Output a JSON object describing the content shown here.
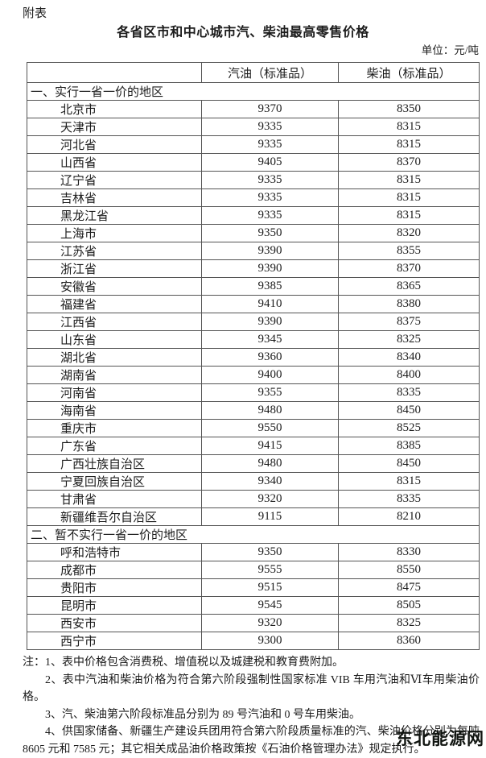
{
  "page": {
    "top_label": "附表",
    "title": "各省区市和中心城市汽、柴油最高零售价格",
    "unit_label": "单位：元/吨"
  },
  "table": {
    "columns": [
      "",
      "汽油（标准品）",
      "柴油（标准品）"
    ],
    "sections": [
      {
        "heading": "一、实行一省一价的地区",
        "rows": [
          {
            "region": "北京市",
            "gasoline": "9370",
            "diesel": "8350"
          },
          {
            "region": "天津市",
            "gasoline": "9335",
            "diesel": "8315"
          },
          {
            "region": "河北省",
            "gasoline": "9335",
            "diesel": "8315"
          },
          {
            "region": "山西省",
            "gasoline": "9405",
            "diesel": "8370"
          },
          {
            "region": "辽宁省",
            "gasoline": "9335",
            "diesel": "8315"
          },
          {
            "region": "吉林省",
            "gasoline": "9335",
            "diesel": "8315"
          },
          {
            "region": "黑龙江省",
            "gasoline": "9335",
            "diesel": "8315"
          },
          {
            "region": "上海市",
            "gasoline": "9350",
            "diesel": "8320"
          },
          {
            "region": "江苏省",
            "gasoline": "9390",
            "diesel": "8355"
          },
          {
            "region": "浙江省",
            "gasoline": "9390",
            "diesel": "8370"
          },
          {
            "region": "安徽省",
            "gasoline": "9385",
            "diesel": "8365"
          },
          {
            "region": "福建省",
            "gasoline": "9410",
            "diesel": "8380"
          },
          {
            "region": "江西省",
            "gasoline": "9390",
            "diesel": "8375"
          },
          {
            "region": "山东省",
            "gasoline": "9345",
            "diesel": "8325"
          },
          {
            "region": "湖北省",
            "gasoline": "9360",
            "diesel": "8340"
          },
          {
            "region": "湖南省",
            "gasoline": "9400",
            "diesel": "8400"
          },
          {
            "region": "河南省",
            "gasoline": "9355",
            "diesel": "8335"
          },
          {
            "region": "海南省",
            "gasoline": "9480",
            "diesel": "8450"
          },
          {
            "region": "重庆市",
            "gasoline": "9550",
            "diesel": "8525"
          },
          {
            "region": "广东省",
            "gasoline": "9415",
            "diesel": "8385"
          },
          {
            "region": "广西壮族自治区",
            "gasoline": "9480",
            "diesel": "8450"
          },
          {
            "region": "宁夏回族自治区",
            "gasoline": "9340",
            "diesel": "8315"
          },
          {
            "region": "甘肃省",
            "gasoline": "9320",
            "diesel": "8335"
          },
          {
            "region": "新疆维吾尔自治区",
            "gasoline": "9115",
            "diesel": "8210"
          }
        ]
      },
      {
        "heading": "二、暂不实行一省一价的地区",
        "rows": [
          {
            "region": "呼和浩特市",
            "gasoline": "9350",
            "diesel": "8330"
          },
          {
            "region": "成都市",
            "gasoline": "9555",
            "diesel": "8550"
          },
          {
            "region": "贵阳市",
            "gasoline": "9515",
            "diesel": "8475"
          },
          {
            "region": "昆明市",
            "gasoline": "9545",
            "diesel": "8505"
          },
          {
            "region": "西安市",
            "gasoline": "9320",
            "diesel": "8325"
          },
          {
            "region": "西宁市",
            "gasoline": "9300",
            "diesel": "8360"
          }
        ]
      }
    ]
  },
  "notes": [
    "注：1、表中价格包含消费税、增值税以及城建税和教育费附加。",
    "2、表中汽油和柴油价格为符合第六阶段强制性国家标准 VIB 车用汽油和Ⅵ车用柴油价格。",
    "3、汽、柴油第六阶段标准品分别为 89 号汽油和 0 号车用柴油。",
    "4、供国家储备、新疆生产建设兵团用符合第六阶段质量标准的汽、柴油价格分别为每吨 8605 元和 7585 元；其它相关成品油价格政策按《石油价格管理办法》规定执行。"
  ],
  "watermark": "东北能源网"
}
